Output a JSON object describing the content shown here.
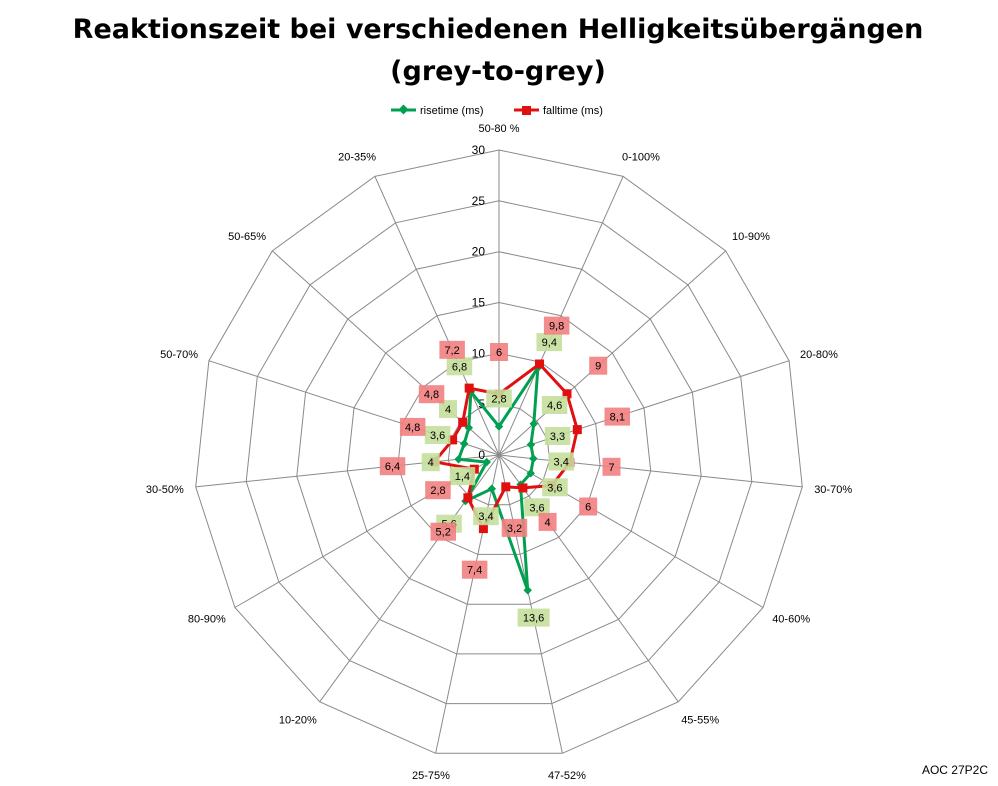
{
  "chart_data": {
    "type": "radar",
    "title_line1": "Reaktionszeit bei verschiedenen Helligkeitsübergängen",
    "title_line2": "(grey-to-grey)",
    "categories": [
      "50-80 %",
      "0-100%",
      "10-90%",
      "20-80%",
      "30-70%",
      "40-60%",
      "45-55%",
      "47-52%",
      "25-75%",
      "10-20%",
      "80-90%",
      "30-50%",
      "50-70%",
      "50-65%",
      "20-35%"
    ],
    "rlim": [
      0,
      30
    ],
    "ticks": [
      0,
      5,
      10,
      15,
      20,
      25,
      30
    ],
    "tick_labels": [
      "0",
      "5",
      "10",
      "15",
      "20",
      "25",
      "30"
    ],
    "grid": true,
    "legend_position": "top",
    "series": [
      {
        "name": "risetime (ms)",
        "color": "#00A050",
        "label_bg": "#C4DF9B",
        "marker": "diamond",
        "values": [
          2.8,
          9.4,
          4.6,
          3.3,
          3.4,
          3.6,
          3.6,
          13.6,
          3.4,
          5.6,
          1.4,
          4,
          3.6,
          4,
          6.8
        ],
        "labels": [
          "2,8",
          "9,4",
          "4,6",
          "3,3",
          "3,4",
          "3,6",
          "3,6",
          "13,6",
          "3,4",
          "5,6",
          "1,4",
          "4",
          "3,6",
          "4",
          "6,8"
        ]
      },
      {
        "name": "falltime (ms)",
        "color": "#E01010",
        "label_bg": "#F28080",
        "marker": "square",
        "values": [
          6,
          9.8,
          9,
          8.1,
          7,
          6,
          4,
          3.2,
          7.4,
          5.2,
          2.8,
          6.4,
          4.8,
          4.8,
          7.2
        ],
        "labels": [
          "6",
          "9,8",
          "9",
          "8,1",
          "7",
          "6",
          "4",
          "3,2",
          "7,4",
          "5,2",
          "2,8",
          "6,4",
          "4,8",
          "4,8",
          "7,2"
        ]
      }
    ],
    "watermark": "AOC 27P2C"
  }
}
